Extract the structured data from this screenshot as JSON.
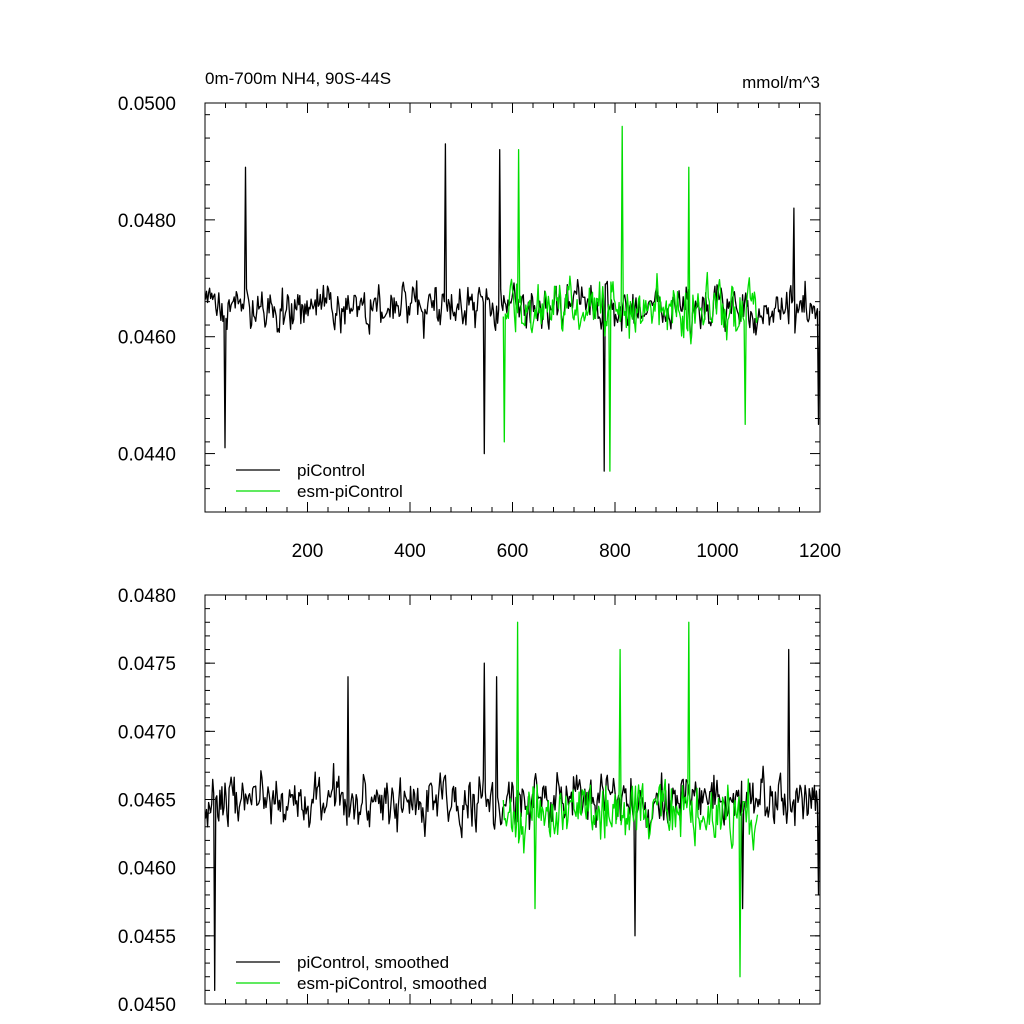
{
  "colors": {
    "piControl": "#000000",
    "esm-piControl": "#00dd00",
    "axis": "#000000",
    "background": "#ffffff"
  },
  "chart_data": [
    {
      "type": "line",
      "title": "0m-700m NH4, 90S-44S",
      "units": "mmol/m^3",
      "xlim": [
        0,
        1200
      ],
      "ylim": [
        0.043,
        0.05
      ],
      "x_ticks": [
        200,
        400,
        600,
        800,
        1000,
        1200
      ],
      "x_tick_labels": [
        "200",
        "400",
        "600",
        "800",
        "1000",
        "1200"
      ],
      "y_ticks": [
        0.044,
        0.046,
        0.048,
        0.05
      ],
      "y_tick_labels": [
        "0.0440",
        "0.0460",
        "0.0480",
        "0.0500"
      ],
      "grid": false,
      "legend_position": "bottom-left",
      "series": [
        {
          "name": "piControl",
          "color": "#000000",
          "x_start": 1,
          "x_end": 1200,
          "mean": 0.0465,
          "noise_amplitude": 0.0008,
          "peaks": [
            [
              40,
              0.0441
            ],
            [
              80,
              0.0489
            ],
            [
              470,
              0.0493
            ],
            [
              545,
              0.044
            ],
            [
              575,
              0.0492
            ],
            [
              780,
              0.0437
            ],
            [
              1150,
              0.0482
            ],
            [
              1198,
              0.0445
            ]
          ]
        },
        {
          "name": "esm-piControl",
          "color": "#00dd00",
          "x_start": 582,
          "x_end": 1078,
          "mean": 0.0465,
          "noise_amplitude": 0.001,
          "peaks": [
            [
              585,
              0.0442
            ],
            [
              612,
              0.0492
            ],
            [
              790,
              0.0437
            ],
            [
              815,
              0.0496
            ],
            [
              945,
              0.0489
            ],
            [
              1055,
              0.0445
            ]
          ]
        }
      ]
    },
    {
      "type": "line",
      "xlim": [
        0,
        1200
      ],
      "ylim": [
        0.045,
        0.048
      ],
      "x_ticks": [
        200,
        400,
        600,
        800,
        1000,
        1200
      ],
      "y_ticks": [
        0.045,
        0.0455,
        0.046,
        0.0465,
        0.047,
        0.0475,
        0.048
      ],
      "y_tick_labels": [
        "0.0450",
        "0.0455",
        "0.0460",
        "0.0465",
        "0.0470",
        "0.0475",
        "0.0480"
      ],
      "grid": false,
      "legend_position": "bottom-left",
      "series": [
        {
          "name": "piControl, smoothed",
          "color": "#000000",
          "x_start": 1,
          "x_end": 1200,
          "mean": 0.0465,
          "noise_amplitude": 0.0004,
          "peaks": [
            [
              5,
              0.0463
            ],
            [
              20,
              0.0451
            ],
            [
              280,
              0.0474
            ],
            [
              545,
              0.0475
            ],
            [
              570,
              0.0474
            ],
            [
              840,
              0.0455
            ],
            [
              1050,
              0.0457
            ],
            [
              1140,
              0.0476
            ],
            [
              1198,
              0.0458
            ]
          ]
        },
        {
          "name": "esm-piControl, smoothed",
          "color": "#00dd00",
          "x_start": 582,
          "x_end": 1078,
          "mean": 0.0464,
          "noise_amplitude": 0.0005,
          "peaks": [
            [
              610,
              0.0478
            ],
            [
              645,
              0.0457
            ],
            [
              810,
              0.0476
            ],
            [
              945,
              0.0478
            ],
            [
              1045,
              0.0452
            ]
          ]
        }
      ]
    }
  ]
}
